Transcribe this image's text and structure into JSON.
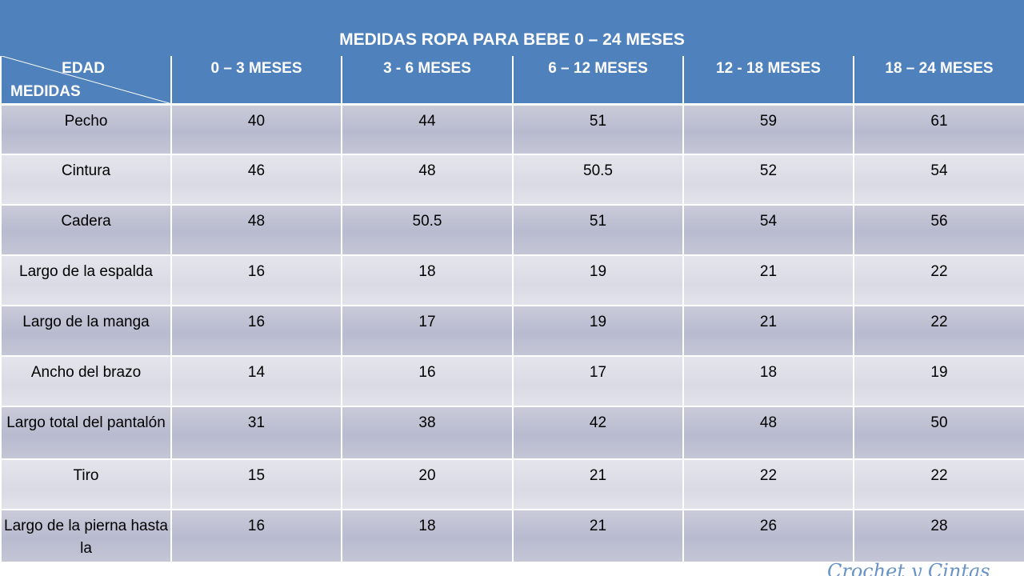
{
  "title": "MEDIDAS ROPA PARA BEBE 0 – 24 MESES",
  "corner": {
    "top_label": "EDAD",
    "bottom_label": "MEDIDAS"
  },
  "columns": [
    "0 – 3 MESES",
    "3 - 6 MESES",
    "6 – 12 MESES",
    "12  - 18 MESES",
    "18 – 24 MESES"
  ],
  "rows": [
    {
      "label": "Pecho",
      "values": [
        "40",
        "44",
        "51",
        "59",
        "61"
      ]
    },
    {
      "label": "Cintura",
      "values": [
        "46",
        "48",
        "50.5",
        "52",
        "54"
      ]
    },
    {
      "label": "Cadera",
      "values": [
        "48",
        "50.5",
        "51",
        "54",
        "56"
      ]
    },
    {
      "label": "Largo de la espalda",
      "values": [
        "16",
        "18",
        "19",
        "21",
        "22"
      ]
    },
    {
      "label": "Largo de la manga",
      "values": [
        "16",
        "17",
        "19",
        "21",
        "22"
      ]
    },
    {
      "label": "Ancho del brazo",
      "values": [
        "14",
        "16",
        "17",
        "18",
        "19"
      ]
    },
    {
      "label": "Largo total del pantalón",
      "values": [
        "31",
        "38",
        "42",
        "48",
        "50"
      ]
    },
    {
      "label": "Tiro",
      "values": [
        "15",
        "20",
        "21",
        "22",
        "22"
      ]
    },
    {
      "label": "Largo de la pierna hasta la",
      "values": [
        "16",
        "18",
        "21",
        "26",
        "28"
      ]
    }
  ],
  "watermark": "Crochet y Cintas",
  "colors": {
    "header_blue": "#4f81bd",
    "row_dark": "#bfc2d4",
    "row_light": "#dedfe8"
  }
}
